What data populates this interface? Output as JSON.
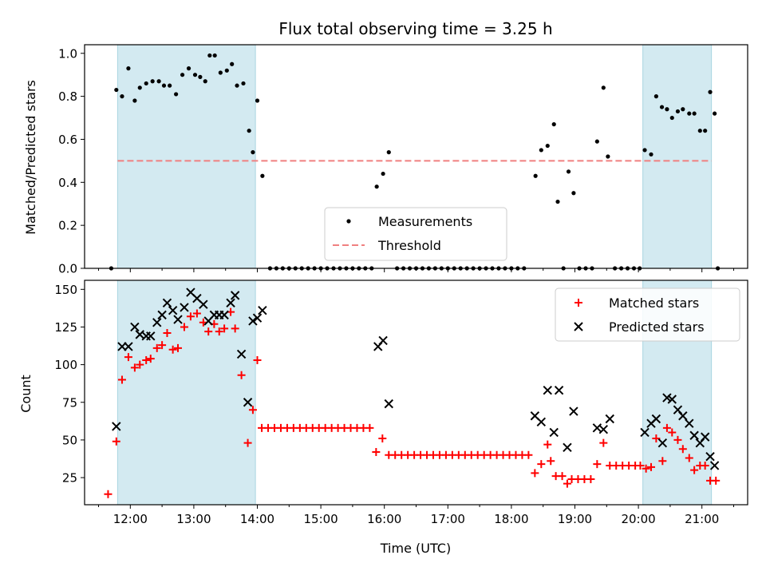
{
  "chart_data": [
    {
      "type": "scatter",
      "title": "Flux total observing time = 3.25 h",
      "xlabel": "",
      "ylabel": "Matched/Predicted stars",
      "ylim": [
        0,
        1.04
      ],
      "yticks": [
        "0.0",
        "0.2",
        "0.4",
        "0.6",
        "0.8",
        "1.0"
      ],
      "x_unit": "hours UTC",
      "shaded_intervals": [
        [
          11.8,
          13.97
        ],
        [
          20.07,
          21.15
        ]
      ],
      "shade_color": "#d3eaf1",
      "legend": {
        "position": "bottom-center",
        "entries": [
          "Measurements",
          "Threshold"
        ]
      },
      "series": [
        {
          "name": "Measurements",
          "marker": "dot",
          "color": "#000000",
          "points": [
            [
              11.7,
              0.0
            ],
            [
              11.78,
              0.83
            ],
            [
              11.87,
              0.8
            ],
            [
              11.97,
              0.93
            ],
            [
              12.07,
              0.78
            ],
            [
              12.15,
              0.84
            ],
            [
              12.25,
              0.86
            ],
            [
              12.35,
              0.87
            ],
            [
              12.45,
              0.87
            ],
            [
              12.53,
              0.85
            ],
            [
              12.62,
              0.85
            ],
            [
              12.72,
              0.81
            ],
            [
              12.82,
              0.9
            ],
            [
              12.92,
              0.93
            ],
            [
              13.02,
              0.9
            ],
            [
              13.1,
              0.89
            ],
            [
              13.18,
              0.87
            ],
            [
              13.25,
              0.99
            ],
            [
              13.33,
              0.99
            ],
            [
              13.42,
              0.91
            ],
            [
              13.52,
              0.92
            ],
            [
              13.6,
              0.95
            ],
            [
              13.68,
              0.85
            ],
            [
              13.78,
              0.86
            ],
            [
              13.87,
              0.64
            ],
            [
              13.93,
              0.54
            ],
            [
              14.0,
              0.78
            ],
            [
              14.08,
              0.43
            ],
            [
              14.2,
              0.0
            ],
            [
              14.3,
              0.0
            ],
            [
              14.4,
              0.0
            ],
            [
              14.5,
              0.0
            ],
            [
              14.6,
              0.0
            ],
            [
              14.7,
              0.0
            ],
            [
              14.8,
              0.0
            ],
            [
              14.9,
              0.0
            ],
            [
              15.0,
              0.0
            ],
            [
              15.1,
              0.0
            ],
            [
              15.2,
              0.0
            ],
            [
              15.3,
              0.0
            ],
            [
              15.4,
              0.0
            ],
            [
              15.5,
              0.0
            ],
            [
              15.6,
              0.0
            ],
            [
              15.7,
              0.0
            ],
            [
              15.8,
              0.0
            ],
            [
              15.88,
              0.38
            ],
            [
              15.98,
              0.44
            ],
            [
              16.07,
              0.54
            ],
            [
              16.2,
              0.0
            ],
            [
              16.3,
              0.0
            ],
            [
              16.4,
              0.0
            ],
            [
              16.5,
              0.0
            ],
            [
              16.6,
              0.0
            ],
            [
              16.7,
              0.0
            ],
            [
              16.8,
              0.0
            ],
            [
              16.9,
              0.0
            ],
            [
              17.0,
              0.0
            ],
            [
              17.1,
              0.0
            ],
            [
              17.2,
              0.0
            ],
            [
              17.3,
              0.0
            ],
            [
              17.4,
              0.0
            ],
            [
              17.5,
              0.0
            ],
            [
              17.6,
              0.0
            ],
            [
              17.7,
              0.0
            ],
            [
              17.8,
              0.0
            ],
            [
              17.9,
              0.0
            ],
            [
              18.0,
              0.0
            ],
            [
              18.1,
              0.0
            ],
            [
              18.2,
              0.0
            ],
            [
              18.38,
              0.43
            ],
            [
              18.47,
              0.55
            ],
            [
              18.57,
              0.57
            ],
            [
              18.67,
              0.67
            ],
            [
              18.73,
              0.31
            ],
            [
              18.82,
              0.0
            ],
            [
              18.9,
              0.45
            ],
            [
              18.98,
              0.35
            ],
            [
              19.07,
              0.0
            ],
            [
              19.17,
              0.0
            ],
            [
              19.27,
              0.0
            ],
            [
              19.35,
              0.59
            ],
            [
              19.45,
              0.84
            ],
            [
              19.52,
              0.52
            ],
            [
              19.63,
              0.0
            ],
            [
              19.73,
              0.0
            ],
            [
              19.83,
              0.0
            ],
            [
              19.93,
              0.0
            ],
            [
              20.02,
              0.0
            ],
            [
              20.1,
              0.55
            ],
            [
              20.2,
              0.53
            ],
            [
              20.28,
              0.8
            ],
            [
              20.37,
              0.75
            ],
            [
              20.45,
              0.74
            ],
            [
              20.53,
              0.7
            ],
            [
              20.62,
              0.73
            ],
            [
              20.7,
              0.74
            ],
            [
              20.8,
              0.72
            ],
            [
              20.88,
              0.72
            ],
            [
              20.97,
              0.64
            ],
            [
              21.05,
              0.64
            ],
            [
              21.13,
              0.82
            ],
            [
              21.2,
              0.72
            ],
            [
              21.25,
              0.0
            ]
          ]
        },
        {
          "name": "Threshold",
          "style": "dashed",
          "color": "#f08080",
          "x": [
            11.8,
            21.15
          ],
          "y": [
            0.5,
            0.5
          ]
        }
      ]
    },
    {
      "type": "scatter",
      "title": "",
      "xlabel": "Time (UTC)",
      "ylabel": "Count",
      "ylim": [
        7,
        156
      ],
      "yticks": [
        "25",
        "50",
        "75",
        "100",
        "125",
        "150"
      ],
      "xticks": [
        "12:00",
        "13:00",
        "14:00",
        "15:00",
        "16:00",
        "17:00",
        "18:00",
        "19:00",
        "20:00",
        "21:00"
      ],
      "x_unit": "hours UTC",
      "shaded_intervals": [
        [
          11.8,
          13.97
        ],
        [
          20.07,
          21.15
        ]
      ],
      "shade_color": "#d3eaf1",
      "legend": {
        "position": "top-right",
        "entries": [
          "Matched stars",
          "Predicted stars"
        ]
      },
      "series": [
        {
          "name": "Matched stars",
          "marker": "plus",
          "color": "#ff0000",
          "points": [
            [
              11.65,
              14
            ],
            [
              11.78,
              49
            ],
            [
              11.87,
              90
            ],
            [
              11.97,
              105
            ],
            [
              12.07,
              98
            ],
            [
              12.15,
              100
            ],
            [
              12.25,
              103
            ],
            [
              12.32,
              104
            ],
            [
              12.42,
              111
            ],
            [
              12.5,
              113
            ],
            [
              12.58,
              121
            ],
            [
              12.67,
              110
            ],
            [
              12.75,
              111
            ],
            [
              12.85,
              125
            ],
            [
              12.95,
              132
            ],
            [
              13.05,
              134
            ],
            [
              13.15,
              128
            ],
            [
              13.23,
              122
            ],
            [
              13.32,
              127
            ],
            [
              13.4,
              122
            ],
            [
              13.48,
              124
            ],
            [
              13.58,
              135
            ],
            [
              13.65,
              124
            ],
            [
              13.75,
              93
            ],
            [
              13.85,
              48
            ],
            [
              13.93,
              70
            ],
            [
              14.0,
              103
            ],
            [
              14.07,
              58
            ],
            [
              14.17,
              58
            ],
            [
              14.27,
              58
            ],
            [
              14.37,
              58
            ],
            [
              14.47,
              58
            ],
            [
              14.57,
              58
            ],
            [
              14.67,
              58
            ],
            [
              14.77,
              58
            ],
            [
              14.87,
              58
            ],
            [
              14.97,
              58
            ],
            [
              15.07,
              58
            ],
            [
              15.17,
              58
            ],
            [
              15.27,
              58
            ],
            [
              15.37,
              58
            ],
            [
              15.47,
              58
            ],
            [
              15.57,
              58
            ],
            [
              15.67,
              58
            ],
            [
              15.77,
              58
            ],
            [
              15.87,
              42
            ],
            [
              15.97,
              51
            ],
            [
              16.07,
              40
            ],
            [
              16.17,
              40
            ],
            [
              16.27,
              40
            ],
            [
              16.37,
              40
            ],
            [
              16.47,
              40
            ],
            [
              16.57,
              40
            ],
            [
              16.67,
              40
            ],
            [
              16.77,
              40
            ],
            [
              16.87,
              40
            ],
            [
              16.97,
              40
            ],
            [
              17.07,
              40
            ],
            [
              17.17,
              40
            ],
            [
              17.27,
              40
            ],
            [
              17.37,
              40
            ],
            [
              17.47,
              40
            ],
            [
              17.57,
              40
            ],
            [
              17.67,
              40
            ],
            [
              17.77,
              40
            ],
            [
              17.87,
              40
            ],
            [
              17.97,
              40
            ],
            [
              18.07,
              40
            ],
            [
              18.17,
              40
            ],
            [
              18.27,
              40
            ],
            [
              18.37,
              28
            ],
            [
              18.47,
              34
            ],
            [
              18.57,
              47
            ],
            [
              18.62,
              36
            ],
            [
              18.7,
              26
            ],
            [
              18.8,
              26
            ],
            [
              18.88,
              21
            ],
            [
              18.95,
              24
            ],
            [
              19.05,
              24
            ],
            [
              19.15,
              24
            ],
            [
              19.25,
              24
            ],
            [
              19.35,
              34
            ],
            [
              19.45,
              48
            ],
            [
              19.55,
              33
            ],
            [
              19.65,
              33
            ],
            [
              19.75,
              33
            ],
            [
              19.85,
              33
            ],
            [
              19.95,
              33
            ],
            [
              20.03,
              33
            ],
            [
              20.12,
              31
            ],
            [
              20.2,
              32
            ],
            [
              20.28,
              51
            ],
            [
              20.38,
              36
            ],
            [
              20.45,
              58
            ],
            [
              20.53,
              55
            ],
            [
              20.62,
              50
            ],
            [
              20.7,
              44
            ],
            [
              20.8,
              38
            ],
            [
              20.88,
              30
            ],
            [
              20.97,
              33
            ],
            [
              21.05,
              33
            ],
            [
              21.13,
              23
            ],
            [
              21.22,
              23
            ]
          ]
        },
        {
          "name": "Predicted stars",
          "marker": "x",
          "color": "#000000",
          "points": [
            [
              11.78,
              59
            ],
            [
              11.87,
              112
            ],
            [
              11.97,
              112
            ],
            [
              12.07,
              125
            ],
            [
              12.15,
              120
            ],
            [
              12.25,
              119
            ],
            [
              12.32,
              119
            ],
            [
              12.42,
              128
            ],
            [
              12.5,
              133
            ],
            [
              12.58,
              141
            ],
            [
              12.67,
              136
            ],
            [
              12.75,
              130
            ],
            [
              12.85,
              138
            ],
            [
              12.95,
              148
            ],
            [
              13.05,
              144
            ],
            [
              13.15,
              140
            ],
            [
              13.23,
              129
            ],
            [
              13.32,
              133
            ],
            [
              13.4,
              133
            ],
            [
              13.48,
              133
            ],
            [
              13.58,
              141
            ],
            [
              13.65,
              146
            ],
            [
              13.75,
              107
            ],
            [
              13.85,
              75
            ],
            [
              13.93,
              129
            ],
            [
              14.0,
              131
            ],
            [
              14.08,
              136
            ],
            [
              15.9,
              112
            ],
            [
              15.98,
              116
            ],
            [
              16.07,
              74
            ],
            [
              18.37,
              66
            ],
            [
              18.47,
              62
            ],
            [
              18.57,
              83
            ],
            [
              18.67,
              55
            ],
            [
              18.75,
              83
            ],
            [
              18.88,
              45
            ],
            [
              18.98,
              69
            ],
            [
              19.35,
              58
            ],
            [
              19.45,
              57
            ],
            [
              19.55,
              64
            ],
            [
              20.1,
              55
            ],
            [
              20.2,
              61
            ],
            [
              20.28,
              64
            ],
            [
              20.38,
              48
            ],
            [
              20.45,
              78
            ],
            [
              20.53,
              77
            ],
            [
              20.62,
              70
            ],
            [
              20.7,
              66
            ],
            [
              20.8,
              61
            ],
            [
              20.88,
              53
            ],
            [
              20.97,
              48
            ],
            [
              21.05,
              52
            ],
            [
              21.13,
              39
            ],
            [
              21.2,
              33
            ]
          ]
        }
      ]
    }
  ]
}
